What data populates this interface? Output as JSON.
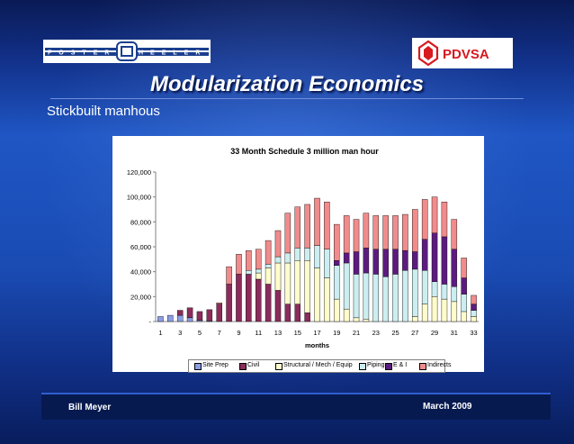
{
  "header": {
    "title": "Modularization Economics",
    "subtitle": "Stickbuilt manhous",
    "logo_left_text": "FOSTER WHEELER",
    "logo_right_text": "PDVSA"
  },
  "footer": {
    "author": "Bill Meyer",
    "date": "March 2009"
  },
  "colors": {
    "site_prep": "#8a9ee6",
    "civil": "#8c2c5b",
    "structural": "#fffccc",
    "piping": "#cceef0",
    "e_and_i": "#5c1b7f",
    "indirects": "#f08c8c",
    "pdvsa_red": "#d71920"
  },
  "chart_data": {
    "type": "bar",
    "stacked": true,
    "title": "33 Month Schedule 3 million man hour",
    "xlabel": "months",
    "ylabel": "",
    "ylim": [
      0,
      120000
    ],
    "yticks": [
      0,
      20000,
      40000,
      60000,
      80000,
      100000,
      120000
    ],
    "ytick_labels": [
      "-",
      "20,000",
      "40,000",
      "60,000",
      "80,000",
      "100,000",
      "120,000"
    ],
    "categories": [
      1,
      2,
      3,
      4,
      5,
      6,
      7,
      8,
      9,
      10,
      11,
      12,
      13,
      14,
      15,
      16,
      17,
      18,
      19,
      20,
      21,
      22,
      23,
      24,
      25,
      26,
      27,
      28,
      29,
      30,
      31,
      32,
      33
    ],
    "xtick_labels": [
      "1",
      "3",
      "5",
      "7",
      "9",
      "11",
      "13",
      "15",
      "17",
      "19",
      "21",
      "23",
      "25",
      "27",
      "29",
      "31",
      "33"
    ],
    "legend": [
      "Site Prep",
      "Civil",
      "Structural / Mech / Equip",
      "Piping",
      "E & I",
      "Indirects"
    ],
    "legend_position": "bottom",
    "grid": false,
    "series": [
      {
        "name": "Site Prep",
        "values": [
          4000,
          5000,
          5000,
          3000,
          1000,
          500,
          0,
          0,
          0,
          0,
          0,
          0,
          0,
          0,
          0,
          0,
          0,
          0,
          0,
          0,
          0,
          0,
          0,
          0,
          0,
          0,
          0,
          0,
          0,
          0,
          0,
          0,
          0
        ]
      },
      {
        "name": "Civil",
        "values": [
          0,
          0,
          4000,
          8000,
          7000,
          9000,
          14000,
          30000,
          38000,
          38000,
          34000,
          30000,
          25000,
          14000,
          14000,
          7000,
          0,
          0,
          0,
          0,
          0,
          0,
          0,
          0,
          0,
          0,
          0,
          0,
          0,
          0,
          0,
          0,
          0
        ]
      },
      {
        "name": "Structural / Mech / Equip",
        "values": [
          0,
          0,
          0,
          0,
          0,
          0,
          0,
          0,
          0,
          0,
          5000,
          13000,
          22000,
          33000,
          35000,
          42000,
          43000,
          35000,
          18000,
          10000,
          3000,
          2000,
          0,
          0,
          0,
          0,
          4000,
          14000,
          20000,
          18000,
          16000,
          8000,
          4000
        ]
      },
      {
        "name": "Piping",
        "values": [
          0,
          0,
          0,
          0,
          0,
          0,
          0,
          0,
          0,
          3000,
          3000,
          3000,
          5000,
          8000,
          10000,
          10000,
          18000,
          23000,
          27000,
          37000,
          35000,
          37000,
          38000,
          36000,
          38000,
          41000,
          38000,
          27000,
          12000,
          12000,
          12000,
          14000,
          5000
        ]
      },
      {
        "name": "E & I",
        "values": [
          0,
          0,
          0,
          0,
          0,
          0,
          0,
          0,
          0,
          0,
          0,
          0,
          0,
          0,
          0,
          0,
          0,
          0,
          4000,
          8000,
          18000,
          20000,
          20000,
          22000,
          20000,
          16000,
          14000,
          25000,
          39000,
          38000,
          30000,
          13000,
          5000
        ]
      },
      {
        "name": "Indirects",
        "values": [
          0,
          0,
          0,
          0,
          0,
          0,
          1000,
          14000,
          16000,
          16000,
          16000,
          19000,
          21000,
          32000,
          33000,
          35000,
          38000,
          38000,
          29000,
          30000,
          26000,
          28000,
          27000,
          27000,
          27000,
          29000,
          34000,
          32000,
          29000,
          28000,
          24000,
          16000,
          7000
        ]
      }
    ]
  }
}
